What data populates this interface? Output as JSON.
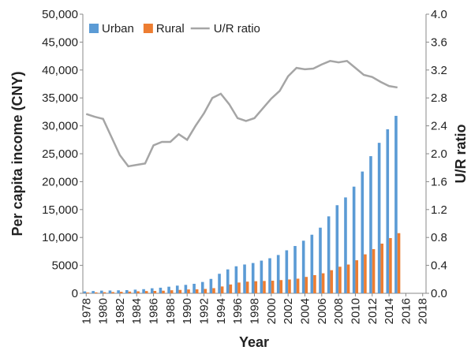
{
  "chart_data": {
    "type": "bar-line",
    "x_label": "Year",
    "y_label": "Per capita income (CNY)",
    "y2_label": "U/R ratio",
    "x": [
      1978,
      1979,
      1980,
      1981,
      1982,
      1983,
      1984,
      1985,
      1986,
      1987,
      1988,
      1989,
      1990,
      1991,
      1992,
      1993,
      1994,
      1995,
      1996,
      1997,
      1998,
      1999,
      2000,
      2001,
      2002,
      2003,
      2004,
      2005,
      2006,
      2007,
      2008,
      2009,
      2010,
      2011,
      2012,
      2013,
      2014,
      2015
    ],
    "series": [
      {
        "name": "Urban",
        "type": "bar",
        "color": "#5b9bd5",
        "values": [
          343,
          405,
          478,
          500,
          535,
          565,
          652,
          739,
          900,
          1002,
          1180,
          1374,
          1510,
          1701,
          2027,
          2577,
          3496,
          4283,
          4839,
          5160,
          5425,
          5854,
          6280,
          6860,
          7703,
          8472,
          9422,
          10493,
          11759,
          13786,
          15781,
          17175,
          19109,
          21810,
          24565,
          26955,
          29381,
          31790
        ]
      },
      {
        "name": "Rural",
        "type": "bar",
        "color": "#ed7d31",
        "values": [
          134,
          160,
          191,
          223,
          270,
          310,
          355,
          398,
          424,
          463,
          545,
          602,
          686,
          709,
          784,
          922,
          1221,
          1578,
          1926,
          2090,
          2162,
          2210,
          2253,
          2366,
          2476,
          2622,
          2936,
          3255,
          3587,
          4140,
          4761,
          5153,
          5919,
          6977,
          7917,
          8896,
          9892,
          10772
        ]
      },
      {
        "name": "U/R ratio",
        "type": "line",
        "axis": "y2",
        "color": "#a5a5a5",
        "values": [
          2.57,
          2.53,
          2.5,
          2.24,
          1.98,
          1.82,
          1.84,
          1.86,
          2.12,
          2.17,
          2.17,
          2.28,
          2.2,
          2.4,
          2.58,
          2.8,
          2.86,
          2.71,
          2.51,
          2.47,
          2.51,
          2.65,
          2.79,
          2.9,
          3.11,
          3.23,
          3.21,
          3.22,
          3.28,
          3.33,
          3.31,
          3.33,
          3.23,
          3.13,
          3.1,
          3.03,
          2.97,
          2.95
        ]
      }
    ],
    "xlim": [
      1977.6,
      2018.4
    ],
    "xticks": [
      1978,
      1980,
      1982,
      1984,
      1986,
      1988,
      1990,
      1992,
      1994,
      1996,
      1998,
      2000,
      2002,
      2004,
      2006,
      2008,
      2010,
      2012,
      2014,
      2016,
      2018
    ],
    "ylim": [
      0,
      50000
    ],
    "yticks": [
      0,
      5000,
      {
        "value": 10000,
        "label": "10,000"
      },
      {
        "value": 15000,
        "label": "15,000"
      },
      {
        "value": 20000,
        "label": "20,000"
      },
      {
        "value": 25000,
        "label": "25,000"
      },
      {
        "value": 30000,
        "label": "30,000"
      },
      {
        "value": 35000,
        "label": "35,000"
      },
      {
        "value": 40000,
        "label": "40,000"
      },
      {
        "value": 45000,
        "label": "45,000"
      },
      {
        "value": 50000,
        "label": "50,000"
      }
    ],
    "y2lim": [
      0,
      4
    ],
    "y2ticks": [
      {
        "value": 0,
        "label": "0.0"
      },
      {
        "value": 0.4,
        "label": "0.4"
      },
      {
        "value": 0.8,
        "label": "0.8"
      },
      {
        "value": 1.2,
        "label": "1.2"
      },
      {
        "value": 1.6,
        "label": "1.6"
      },
      {
        "value": 2,
        "label": "2.0"
      },
      {
        "value": 2.4,
        "label": "2.4"
      },
      {
        "value": 2.8,
        "label": "2.8"
      },
      {
        "value": 3.2,
        "label": "3.2"
      },
      {
        "value": 3.6,
        "label": "3.6"
      },
      {
        "value": 4,
        "label": "4.0"
      }
    ],
    "legend": "upper-left"
  }
}
